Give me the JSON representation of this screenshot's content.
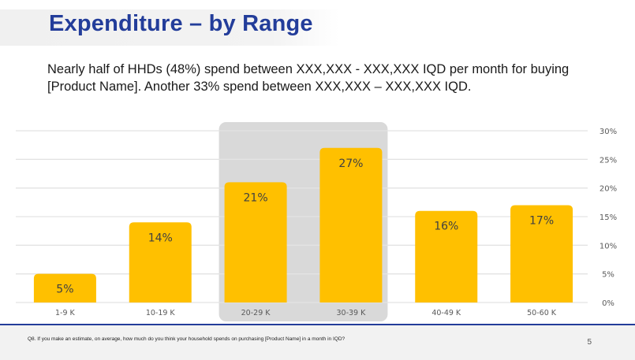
{
  "slide": {
    "title": "Expenditure – by Range",
    "subtitle": "Nearly half of HHDs (48%) spend between XXX,XXX - XXX,XXX IQD per month for buying [Product Name]. Another 33% spend between XXX,XXX – XXX,XXX IQD.",
    "footer_question": "Q8. If you make an estimate, on average, how much do you think your household spends on purchasing [Product Name] in a month in IQD?",
    "page_number": "5"
  },
  "colors": {
    "bar": "#ffc000",
    "highlight": "#d9d9d9",
    "title": "#233d9a",
    "grid": "#e3e3e3"
  },
  "chart_data": {
    "type": "bar",
    "title": "",
    "xlabel": "",
    "ylabel": "",
    "categories": [
      "1-9 K",
      "10-19 K",
      "20-29 K",
      "30-39 K",
      "40-49 K",
      "50-60 K"
    ],
    "values": [
      5,
      14,
      21,
      27,
      16,
      17
    ],
    "data_labels": [
      "5%",
      "14%",
      "21%",
      "27%",
      "16%",
      "17%"
    ],
    "ylim": [
      0,
      30
    ],
    "yticks": [
      0,
      5,
      10,
      15,
      20,
      25,
      30
    ],
    "ytick_labels": [
      "0%",
      "5%",
      "10%",
      "15%",
      "20%",
      "25%",
      "30%"
    ],
    "y_axis_position": "right",
    "grid": true,
    "legend": "none",
    "highlighted_categories": [
      "20-29 K",
      "30-39 K"
    ]
  }
}
